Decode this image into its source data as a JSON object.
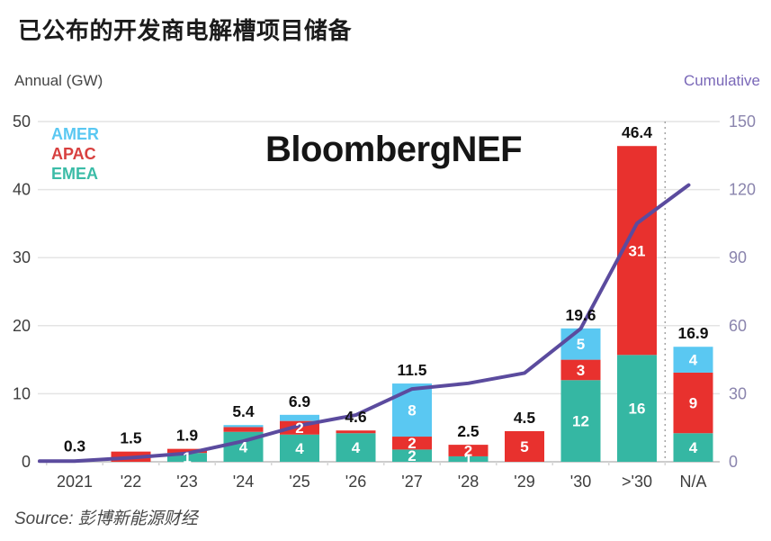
{
  "page": {
    "title": "已公布的开发商电解槽项目储备",
    "watermark": "BloombergNEF",
    "source": "Source: 彭博新能源财经"
  },
  "axes": {
    "left_label": "Annual (GW)",
    "right_label": "Cumulative",
    "left_ticks": [
      0,
      10,
      20,
      30,
      40,
      50
    ],
    "right_ticks": [
      0,
      30,
      60,
      90,
      120,
      150
    ],
    "left_range": [
      0,
      50
    ],
    "right_range": [
      0,
      150
    ]
  },
  "legend": {
    "items": [
      {
        "label": "AMER",
        "color": "#5ac8f2"
      },
      {
        "label": "APAC",
        "color": "#d8403f"
      },
      {
        "label": "EMEA",
        "color": "#3bbca7"
      }
    ]
  },
  "colors": {
    "amer": "#5ac8f2",
    "apac": "#e8312e",
    "emea": "#35b7a3",
    "cumulative_line": "#5b4b9e",
    "grid": "#e4e4e4",
    "baseline": "#cccccc",
    "separator": "#999999",
    "axis_text": "#3d3d3d",
    "right_axis_text": "#8a84ad",
    "total_label": "#111111",
    "bar_value_label": "#ffffff"
  },
  "chart_data": {
    "type": "bar",
    "stacked": true,
    "title": "已公布的开发商电解槽项目储备",
    "xlabel": "",
    "ylabel_left": "Annual (GW)",
    "ylabel_right": "Cumulative",
    "ylim_left": [
      0,
      50
    ],
    "ylim_right": [
      0,
      150
    ],
    "grid": true,
    "legend_position": "top-left",
    "categories": [
      "2021",
      "'22",
      "'23",
      "'24",
      "'25",
      "'26",
      "'27",
      "'28",
      "'29",
      "'30",
      ">'30",
      "N/A"
    ],
    "series": [
      {
        "name": "EMEA",
        "color": "#35b7a3",
        "values": [
          0.2,
          0,
          1.3,
          4.4,
          4.0,
          4.2,
          1.8,
          0.8,
          0,
          12.0,
          15.7,
          4.2
        ],
        "labels": [
          "",
          "",
          "1",
          "4",
          "4",
          "4",
          "2",
          "1",
          "",
          "12",
          "16",
          "4"
        ]
      },
      {
        "name": "APAC",
        "color": "#e8312e",
        "values": [
          0.1,
          1.5,
          0.6,
          0.7,
          2.0,
          0.4,
          1.9,
          1.7,
          4.5,
          3.0,
          30.7,
          8.9
        ],
        "labels": [
          "",
          "",
          "",
          "",
          "2",
          "",
          "2",
          "2",
          "5",
          "3",
          "31",
          "9"
        ]
      },
      {
        "name": "AMER",
        "color": "#5ac8f2",
        "values": [
          0,
          0,
          0,
          0.3,
          0.9,
          0,
          7.8,
          0,
          0,
          4.6,
          0,
          3.8
        ],
        "labels": [
          "",
          "",
          "",
          "",
          "",
          "",
          "8",
          "",
          "",
          "5",
          "",
          "4"
        ]
      }
    ],
    "totals": [
      "0.3",
      "1.5",
      "1.9",
      "5.4",
      "6.9",
      "4.6",
      "11.5",
      "2.5",
      "4.5",
      "19.6",
      "46.4",
      "16.9"
    ],
    "line": {
      "name": "Cumulative",
      "color": "#5b4b9e",
      "axis": "right",
      "values": [
        0.3,
        1.8,
        3.7,
        9.1,
        16.0,
        20.6,
        32.1,
        34.6,
        39.1,
        58.7,
        105.1,
        122.0
      ]
    },
    "separator_before_category": "N/A"
  }
}
